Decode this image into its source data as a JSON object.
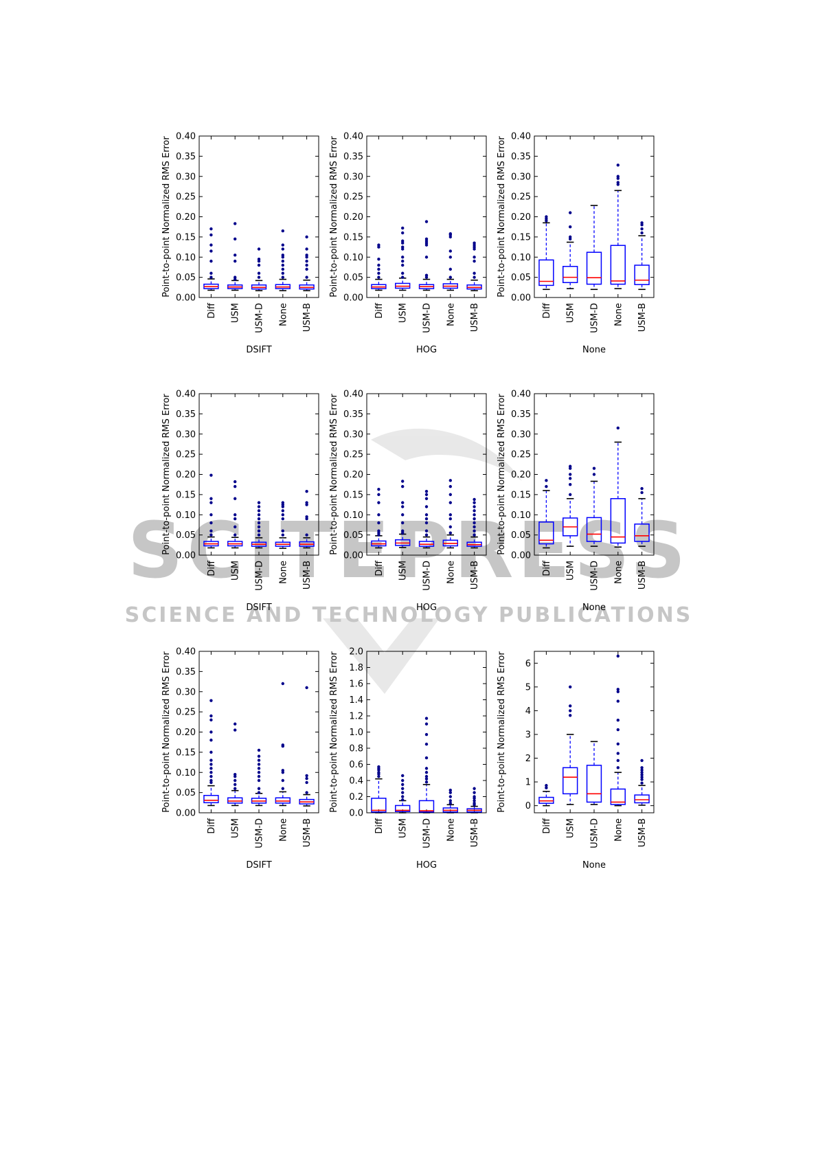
{
  "watermark": {
    "text_line1": "SCITEPRESS",
    "text_line2": "SCIENCE AND TECHNOLOGY PUBLICATIONS"
  },
  "colors": {
    "box": "#0000ff",
    "median": "#ff0000",
    "flier": "#00008b",
    "cap": "#000000",
    "watermark": "#c8c8c8"
  },
  "chart_data": [
    {
      "type": "box",
      "xlabel": "DSIFT",
      "ylabel": "Point-to-point Normalized RMS Error",
      "ylim": [
        0,
        0.4
      ],
      "yticks": [
        "0.00",
        "0.05",
        "0.10",
        "0.15",
        "0.20",
        "0.25",
        "0.30",
        "0.35",
        "0.40"
      ],
      "ytick_values": [
        0,
        0.05,
        0.1,
        0.15,
        0.2,
        0.25,
        0.3,
        0.35,
        0.4
      ],
      "categories": [
        "Diff",
        "USM",
        "USM-D",
        "None",
        "USM-B"
      ],
      "boxes": [
        {
          "q1": 0.022,
          "median": 0.027,
          "q3": 0.033,
          "whisker_low": 0.018,
          "whisker_high": 0.046,
          "fliers": [
            0.05,
            0.06,
            0.09,
            0.115,
            0.13,
            0.155,
            0.17
          ]
        },
        {
          "q1": 0.022,
          "median": 0.026,
          "q3": 0.031,
          "whisker_low": 0.018,
          "whisker_high": 0.042,
          "fliers": [
            0.045,
            0.05,
            0.09,
            0.105,
            0.145,
            0.183
          ]
        },
        {
          "q1": 0.021,
          "median": 0.025,
          "q3": 0.031,
          "whisker_low": 0.017,
          "whisker_high": 0.042,
          "fliers": [
            0.05,
            0.06,
            0.08,
            0.09,
            0.095,
            0.12
          ]
        },
        {
          "q1": 0.022,
          "median": 0.026,
          "q3": 0.032,
          "whisker_low": 0.017,
          "whisker_high": 0.045,
          "fliers": [
            0.05,
            0.06,
            0.07,
            0.08,
            0.09,
            0.1,
            0.105,
            0.12,
            0.13,
            0.165
          ]
        },
        {
          "q1": 0.021,
          "median": 0.025,
          "q3": 0.031,
          "whisker_low": 0.017,
          "whisker_high": 0.043,
          "fliers": [
            0.05,
            0.07,
            0.08,
            0.09,
            0.1,
            0.105,
            0.12,
            0.15
          ]
        }
      ]
    },
    {
      "type": "box",
      "xlabel": "HOG",
      "ylabel": "Point-to-point Normalized RMS Error",
      "ylim": [
        0,
        0.4
      ],
      "yticks": [
        "0.00",
        "0.05",
        "0.10",
        "0.15",
        "0.20",
        "0.25",
        "0.30",
        "0.35",
        "0.40"
      ],
      "ytick_values": [
        0,
        0.05,
        0.1,
        0.15,
        0.2,
        0.25,
        0.3,
        0.35,
        0.4
      ],
      "categories": [
        "Diff",
        "USM",
        "USM-D",
        "None",
        "USM-B"
      ],
      "boxes": [
        {
          "q1": 0.022,
          "median": 0.026,
          "q3": 0.032,
          "whisker_low": 0.018,
          "whisker_high": 0.045,
          "fliers": [
            0.05,
            0.06,
            0.07,
            0.08,
            0.095,
            0.125,
            0.13
          ]
        },
        {
          "q1": 0.023,
          "median": 0.028,
          "q3": 0.035,
          "whisker_low": 0.018,
          "whisker_high": 0.048,
          "fliers": [
            0.05,
            0.06,
            0.08,
            0.09,
            0.1,
            0.12,
            0.125,
            0.135,
            0.14,
            0.16,
            0.172
          ]
        },
        {
          "q1": 0.022,
          "median": 0.027,
          "q3": 0.032,
          "whisker_low": 0.018,
          "whisker_high": 0.045,
          "fliers": [
            0.05,
            0.055,
            0.1,
            0.13,
            0.135,
            0.14,
            0.145,
            0.188
          ]
        },
        {
          "q1": 0.023,
          "median": 0.028,
          "q3": 0.034,
          "whisker_low": 0.018,
          "whisker_high": 0.045,
          "fliers": [
            0.05,
            0.07,
            0.1,
            0.115,
            0.15,
            0.155,
            0.158
          ]
        },
        {
          "q1": 0.021,
          "median": 0.025,
          "q3": 0.031,
          "whisker_low": 0.017,
          "whisker_high": 0.043,
          "fliers": [
            0.05,
            0.06,
            0.09,
            0.1,
            0.12,
            0.125,
            0.13,
            0.135
          ]
        }
      ]
    },
    {
      "type": "box",
      "xlabel": "None",
      "ylabel": "Point-to-point Normalized RMS Error",
      "ylim": [
        0,
        0.4
      ],
      "yticks": [
        "0.00",
        "0.05",
        "0.10",
        "0.15",
        "0.20",
        "0.25",
        "0.30",
        "0.35",
        "0.40"
      ],
      "ytick_values": [
        0,
        0.05,
        0.1,
        0.15,
        0.2,
        0.25,
        0.3,
        0.35,
        0.4
      ],
      "categories": [
        "Diff",
        "USM",
        "USM-D",
        "None",
        "USM-B"
      ],
      "boxes": [
        {
          "q1": 0.03,
          "median": 0.04,
          "q3": 0.093,
          "whisker_low": 0.02,
          "whisker_high": 0.185,
          "fliers": [
            0.19,
            0.195,
            0.2
          ]
        },
        {
          "q1": 0.037,
          "median": 0.05,
          "q3": 0.077,
          "whisker_low": 0.022,
          "whisker_high": 0.137,
          "fliers": [
            0.145,
            0.15,
            0.175,
            0.21
          ]
        },
        {
          "q1": 0.033,
          "median": 0.049,
          "q3": 0.112,
          "whisker_low": 0.02,
          "whisker_high": 0.228,
          "fliers": []
        },
        {
          "q1": 0.033,
          "median": 0.041,
          "q3": 0.129,
          "whisker_low": 0.022,
          "whisker_high": 0.265,
          "fliers": [
            0.28,
            0.285,
            0.295,
            0.3,
            0.328
          ]
        },
        {
          "q1": 0.032,
          "median": 0.043,
          "q3": 0.08,
          "whisker_low": 0.02,
          "whisker_high": 0.153,
          "fliers": [
            0.16,
            0.17,
            0.18,
            0.185
          ]
        }
      ]
    },
    {
      "type": "box",
      "xlabel": "DSIFT",
      "ylabel": "Point-to-point Normalized RMS Error",
      "ylim": [
        0,
        0.4
      ],
      "yticks": [
        "0.00",
        "0.05",
        "0.10",
        "0.15",
        "0.20",
        "0.25",
        "0.30",
        "0.35",
        "0.40"
      ],
      "ytick_values": [
        0,
        0.05,
        0.1,
        0.15,
        0.2,
        0.25,
        0.3,
        0.35,
        0.4
      ],
      "categories": [
        "Diff",
        "USM",
        "USM-D",
        "None",
        "USM-B"
      ],
      "boxes": [
        {
          "q1": 0.023,
          "median": 0.028,
          "q3": 0.034,
          "whisker_low": 0.018,
          "whisker_high": 0.045,
          "fliers": [
            0.05,
            0.06,
            0.08,
            0.1,
            0.13,
            0.14,
            0.198
          ]
        },
        {
          "q1": 0.023,
          "median": 0.028,
          "q3": 0.034,
          "whisker_low": 0.018,
          "whisker_high": 0.044,
          "fliers": [
            0.05,
            0.07,
            0.09,
            0.1,
            0.14,
            0.17,
            0.182
          ]
        },
        {
          "q1": 0.022,
          "median": 0.027,
          "q3": 0.032,
          "whisker_low": 0.018,
          "whisker_high": 0.043,
          "fliers": [
            0.05,
            0.06,
            0.07,
            0.08,
            0.09,
            0.1,
            0.11,
            0.12,
            0.13
          ]
        },
        {
          "q1": 0.022,
          "median": 0.027,
          "q3": 0.032,
          "whisker_low": 0.017,
          "whisker_high": 0.043,
          "fliers": [
            0.05,
            0.06,
            0.09,
            0.1,
            0.11,
            0.12,
            0.125,
            0.13
          ]
        },
        {
          "q1": 0.022,
          "median": 0.027,
          "q3": 0.033,
          "whisker_low": 0.018,
          "whisker_high": 0.043,
          "fliers": [
            0.05,
            0.09,
            0.095,
            0.125,
            0.13,
            0.158
          ]
        }
      ]
    },
    {
      "type": "box",
      "xlabel": "HOG",
      "ylabel": "Point-to-point Normalized RMS Error",
      "ylim": [
        0,
        0.4
      ],
      "yticks": [
        "0.00",
        "0.05",
        "0.10",
        "0.15",
        "0.20",
        "0.25",
        "0.30",
        "0.35",
        "0.40"
      ],
      "ytick_values": [
        0,
        0.05,
        0.1,
        0.15,
        0.2,
        0.25,
        0.3,
        0.35,
        0.4
      ],
      "categories": [
        "Diff",
        "USM",
        "USM-D",
        "None",
        "USM-B"
      ],
      "boxes": [
        {
          "q1": 0.023,
          "median": 0.028,
          "q3": 0.035,
          "whisker_low": 0.018,
          "whisker_high": 0.048,
          "fliers": [
            0.05,
            0.055,
            0.06,
            0.08,
            0.1,
            0.13,
            0.15,
            0.163
          ]
        },
        {
          "q1": 0.024,
          "median": 0.03,
          "q3": 0.038,
          "whisker_low": 0.019,
          "whisker_high": 0.052,
          "fliers": [
            0.055,
            0.06,
            0.08,
            0.1,
            0.12,
            0.13,
            0.17,
            0.183
          ]
        },
        {
          "q1": 0.022,
          "median": 0.027,
          "q3": 0.034,
          "whisker_low": 0.018,
          "whisker_high": 0.045,
          "fliers": [
            0.05,
            0.06,
            0.08,
            0.09,
            0.1,
            0.12,
            0.14,
            0.15,
            0.158
          ]
        },
        {
          "q1": 0.023,
          "median": 0.029,
          "q3": 0.037,
          "whisker_low": 0.018,
          "whisker_high": 0.05,
          "fliers": [
            0.055,
            0.07,
            0.09,
            0.1,
            0.13,
            0.15,
            0.17,
            0.185
          ]
        },
        {
          "q1": 0.022,
          "median": 0.026,
          "q3": 0.032,
          "whisker_low": 0.018,
          "whisker_high": 0.045,
          "fliers": [
            0.05,
            0.06,
            0.07,
            0.08,
            0.09,
            0.1,
            0.11,
            0.12,
            0.13,
            0.138
          ]
        }
      ]
    },
    {
      "type": "box",
      "xlabel": "None",
      "ylabel": "Point-to-point Normalized RMS Error",
      "ylim": [
        0,
        0.4
      ],
      "yticks": [
        "0.00",
        "0.05",
        "0.10",
        "0.15",
        "0.20",
        "0.25",
        "0.30",
        "0.35",
        "0.40"
      ],
      "ytick_values": [
        0,
        0.05,
        0.1,
        0.15,
        0.2,
        0.25,
        0.3,
        0.35,
        0.4
      ],
      "categories": [
        "Diff",
        "USM",
        "USM-D",
        "None",
        "USM-B"
      ],
      "boxes": [
        {
          "q1": 0.028,
          "median": 0.037,
          "q3": 0.082,
          "whisker_low": 0.018,
          "whisker_high": 0.16,
          "fliers": [
            0.17,
            0.185
          ]
        },
        {
          "q1": 0.048,
          "median": 0.07,
          "q3": 0.092,
          "whisker_low": 0.022,
          "whisker_high": 0.14,
          "fliers": [
            0.15,
            0.175,
            0.19,
            0.2,
            0.215,
            0.22
          ]
        },
        {
          "q1": 0.034,
          "median": 0.052,
          "q3": 0.093,
          "whisker_low": 0.022,
          "whisker_high": 0.183,
          "fliers": [
            0.2,
            0.215
          ]
        },
        {
          "q1": 0.03,
          "median": 0.045,
          "q3": 0.14,
          "whisker_low": 0.02,
          "whisker_high": 0.28,
          "fliers": [
            0.315
          ]
        },
        {
          "q1": 0.034,
          "median": 0.048,
          "q3": 0.077,
          "whisker_low": 0.022,
          "whisker_high": 0.14,
          "fliers": [
            0.155,
            0.165
          ]
        }
      ]
    },
    {
      "type": "box",
      "xlabel": "DSIFT",
      "ylabel": "Point-to-point Normalized RMS Error",
      "ylim": [
        0,
        0.4
      ],
      "yticks": [
        "0.00",
        "0.05",
        "0.10",
        "0.15",
        "0.20",
        "0.25",
        "0.30",
        "0.35",
        "0.40"
      ],
      "ytick_values": [
        0,
        0.05,
        0.1,
        0.15,
        0.2,
        0.25,
        0.3,
        0.35,
        0.4
      ],
      "categories": [
        "Diff",
        "USM",
        "USM-D",
        "None",
        "USM-B"
      ],
      "boxes": [
        {
          "q1": 0.025,
          "median": 0.031,
          "q3": 0.043,
          "whisker_low": 0.018,
          "whisker_high": 0.067,
          "fliers": [
            0.075,
            0.08,
            0.09,
            0.1,
            0.11,
            0.12,
            0.13,
            0.15,
            0.18,
            0.2,
            0.23,
            0.24,
            0.278
          ]
        },
        {
          "q1": 0.024,
          "median": 0.029,
          "q3": 0.037,
          "whisker_low": 0.018,
          "whisker_high": 0.055,
          "fliers": [
            0.06,
            0.07,
            0.08,
            0.09,
            0.095,
            0.205,
            0.22
          ]
        },
        {
          "q1": 0.024,
          "median": 0.029,
          "q3": 0.036,
          "whisker_low": 0.018,
          "whisker_high": 0.048,
          "fliers": [
            0.05,
            0.06,
            0.08,
            0.09,
            0.1,
            0.11,
            0.12,
            0.13,
            0.14,
            0.155
          ]
        },
        {
          "q1": 0.024,
          "median": 0.029,
          "q3": 0.037,
          "whisker_low": 0.018,
          "whisker_high": 0.052,
          "fliers": [
            0.06,
            0.08,
            0.1,
            0.105,
            0.165,
            0.168,
            0.32
          ]
        },
        {
          "q1": 0.022,
          "median": 0.027,
          "q3": 0.033,
          "whisker_low": 0.017,
          "whisker_high": 0.045,
          "fliers": [
            0.05,
            0.075,
            0.085,
            0.092,
            0.31
          ]
        }
      ]
    },
    {
      "type": "box",
      "xlabel": "HOG",
      "ylabel": "Point-to-point Normalized RMS Error",
      "ylim": [
        0,
        2.0
      ],
      "yticks": [
        "0.0",
        "0.2",
        "0.4",
        "0.6",
        "0.8",
        "1.0",
        "1.2",
        "1.4",
        "1.6",
        "1.8",
        "2.0"
      ],
      "ytick_values": [
        0,
        0.2,
        0.4,
        0.6,
        0.8,
        1.0,
        1.2,
        1.4,
        1.6,
        1.8,
        2.0
      ],
      "categories": [
        "Diff",
        "USM",
        "USM-D",
        "None",
        "USM-B"
      ],
      "boxes": [
        {
          "q1": 0.01,
          "median": 0.03,
          "q3": 0.18,
          "whisker_low": 0.0,
          "whisker_high": 0.42,
          "fliers": [
            0.45,
            0.48,
            0.5,
            0.53,
            0.55,
            0.57
          ]
        },
        {
          "q1": 0.015,
          "median": 0.03,
          "q3": 0.09,
          "whisker_low": 0.0,
          "whisker_high": 0.15,
          "fliers": [
            0.16,
            0.2,
            0.25,
            0.3,
            0.35,
            0.4,
            0.46
          ]
        },
        {
          "q1": 0.01,
          "median": 0.025,
          "q3": 0.15,
          "whisker_low": 0.0,
          "whisker_high": 0.35,
          "fliers": [
            0.38,
            0.42,
            0.45,
            0.5,
            0.55,
            0.68,
            0.85,
            0.97,
            1.1,
            1.17
          ]
        },
        {
          "q1": 0.01,
          "median": 0.03,
          "q3": 0.06,
          "whisker_low": 0.0,
          "whisker_high": 0.1,
          "fliers": [
            0.12,
            0.15,
            0.2,
            0.25,
            0.28
          ]
        },
        {
          "q1": 0.01,
          "median": 0.03,
          "q3": 0.05,
          "whisker_low": 0.0,
          "whisker_high": 0.08,
          "fliers": [
            0.1,
            0.12,
            0.15,
            0.18,
            0.2,
            0.25,
            0.3
          ]
        }
      ]
    },
    {
      "type": "box",
      "xlabel": "None",
      "ylabel": "Point-to-point Normalized RMS Error",
      "ylim": [
        -0.3,
        6.5
      ],
      "yticks": [
        "0",
        "1",
        "2",
        "3",
        "4",
        "5",
        "6"
      ],
      "ytick_values": [
        0,
        1,
        2,
        3,
        4,
        5,
        6
      ],
      "categories": [
        "Diff",
        "USM",
        "USM-D",
        "None",
        "USM-B"
      ],
      "boxes": [
        {
          "q1": 0.1,
          "median": 0.2,
          "q3": 0.35,
          "whisker_low": 0.0,
          "whisker_high": 0.6,
          "fliers": [
            0.75,
            0.85
          ]
        },
        {
          "q1": 0.5,
          "median": 1.2,
          "q3": 1.6,
          "whisker_low": 0.05,
          "whisker_high": 3.0,
          "fliers": [
            3.8,
            4.0,
            4.2,
            5.0
          ]
        },
        {
          "q1": 0.15,
          "median": 0.5,
          "q3": 1.7,
          "whisker_low": 0.05,
          "whisker_high": 2.7,
          "fliers": []
        },
        {
          "q1": 0.05,
          "median": 0.15,
          "q3": 0.7,
          "whisker_low": 0.0,
          "whisker_high": 1.4,
          "fliers": [
            1.6,
            1.9,
            2.2,
            2.6,
            3.2,
            3.6,
            4.4,
            4.8,
            4.9,
            6.3
          ]
        },
        {
          "q1": 0.12,
          "median": 0.25,
          "q3": 0.45,
          "whisker_low": 0.02,
          "whisker_high": 0.85,
          "fliers": [
            0.95,
            1.1,
            1.2,
            1.3,
            1.4,
            1.5,
            1.6,
            1.9
          ]
        }
      ]
    }
  ]
}
